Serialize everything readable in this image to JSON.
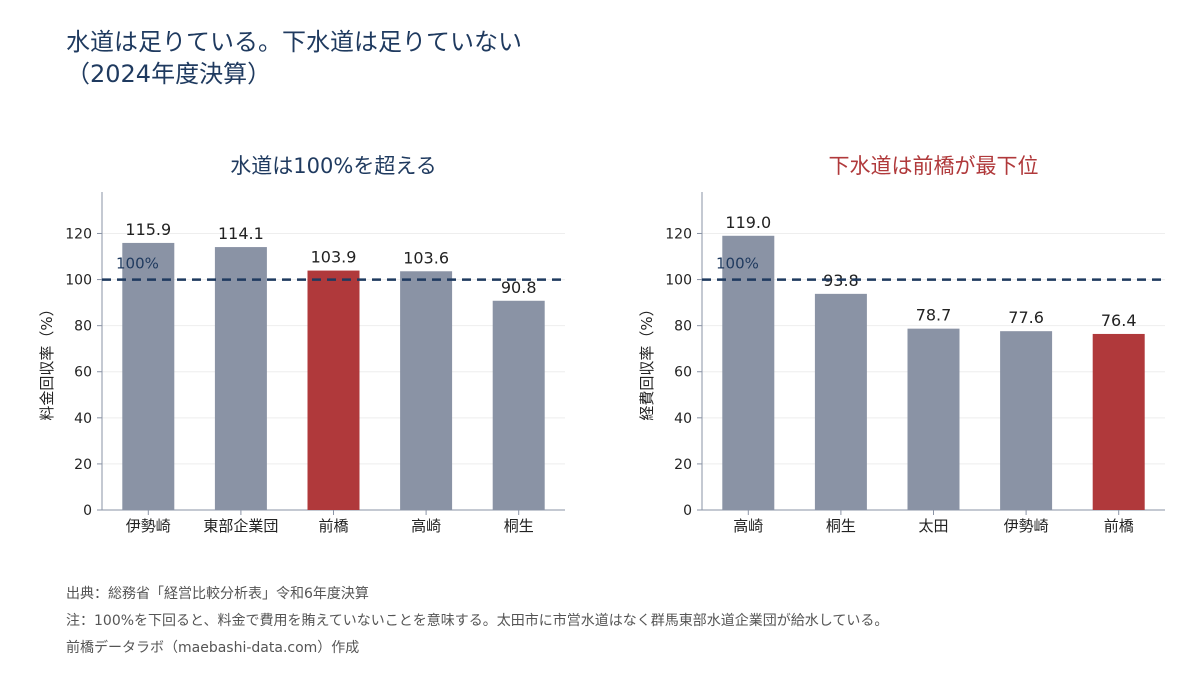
{
  "title": "水道は足りている。下水道は足りていない\n（2024年度決算）",
  "colors": {
    "title": "#1f3a5f",
    "bar_default": "#8a93a5",
    "bar_highlight": "#b0393b",
    "reference_line": "#1f3a5f",
    "left_title": "#1f3a5f",
    "right_title": "#b0393b",
    "axis": "#8a93a5",
    "grid": "#eeeeee"
  },
  "chart_data": [
    {
      "type": "bar",
      "title": "水道は100%を超える",
      "ylabel": "料金回収率（%）",
      "categories": [
        "伊勢崎",
        "東部企業団",
        "前橋",
        "高崎",
        "桐生"
      ],
      "values": [
        115.9,
        114.1,
        103.9,
        103.6,
        90.8
      ],
      "value_labels": [
        "115.9",
        "114.1",
        "103.9",
        "103.6",
        "90.8"
      ],
      "highlight": [
        "前橋"
      ],
      "ylim": [
        0,
        138
      ],
      "yticks": [
        0,
        20,
        40,
        60,
        80,
        100,
        120
      ],
      "reference_line": {
        "value": 100,
        "label": "100%",
        "style": "dashed"
      },
      "grid": true
    },
    {
      "type": "bar",
      "title": "下水道は前橋が最下位",
      "ylabel": "経費回収率（%）",
      "categories": [
        "高崎",
        "桐生",
        "太田",
        "伊勢崎",
        "前橋"
      ],
      "values": [
        119.0,
        93.8,
        78.7,
        77.6,
        76.4
      ],
      "value_labels": [
        "119.0",
        "93.8",
        "78.7",
        "77.6",
        "76.4"
      ],
      "highlight": [
        "前橋"
      ],
      "ylim": [
        0,
        138
      ],
      "yticks": [
        0,
        20,
        40,
        60,
        80,
        100,
        120
      ],
      "reference_line": {
        "value": 100,
        "label": "100%",
        "style": "dashed"
      },
      "grid": true
    }
  ],
  "footer": {
    "source": "出典：総務省「経営比較分析表」令和6年度決算",
    "note": "注：100%を下回ると、料金で費用を賄えていないことを意味する。太田市に市営水道はなく群馬東部水道企業団が給水している。",
    "credit": "前橋データラボ（maebashi-data.com）作成"
  }
}
